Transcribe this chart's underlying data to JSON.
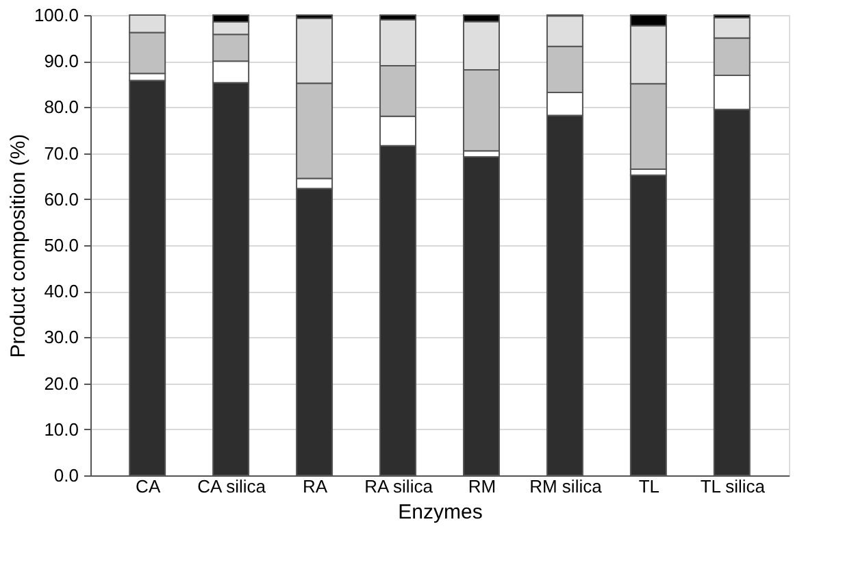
{
  "chart_data": {
    "type": "bar",
    "stacked": true,
    "xlabel": "Enzymes",
    "ylabel": "Product composition (%)",
    "categories": [
      "CA",
      "CA silica",
      "RA",
      "RA silica",
      "RM",
      "RM silica",
      "TL",
      "TL silica"
    ],
    "series": [
      {
        "color": "#2e2e2e",
        "values": [
          85.8,
          85.3,
          62.3,
          71.6,
          69.2,
          78.2,
          65.2,
          79.5
        ]
      },
      {
        "color": "#ffffff",
        "values": [
          1.5,
          4.7,
          2.2,
          6.4,
          1.3,
          5.0,
          1.3,
          7.4
        ]
      },
      {
        "color": "#c0c0c0",
        "values": [
          8.9,
          5.8,
          20.7,
          11.0,
          17.6,
          10.0,
          18.6,
          8.1
        ]
      },
      {
        "color": "#dedede",
        "values": [
          3.8,
          2.7,
          14.1,
          10.0,
          10.5,
          6.6,
          12.6,
          4.4
        ]
      },
      {
        "color": "#000000",
        "values": [
          0,
          1.5,
          0.7,
          1.0,
          1.4,
          0.2,
          2.3,
          0.6
        ]
      }
    ],
    "ylim": [
      0,
      100
    ],
    "yticks": [
      {
        "value": 0,
        "label": "0.0"
      },
      {
        "value": 10,
        "label": "10.0"
      },
      {
        "value": 20,
        "label": "20.0"
      },
      {
        "value": 30,
        "label": "30.0"
      },
      {
        "value": 40,
        "label": "40.0"
      },
      {
        "value": 50,
        "label": "50.0"
      },
      {
        "value": 60,
        "label": "60.0"
      },
      {
        "value": 70,
        "label": "70.0"
      },
      {
        "value": 80,
        "label": "80.0"
      },
      {
        "value": 90,
        "label": "90.0"
      },
      {
        "value": 100,
        "label": "100.0"
      }
    ],
    "grid": "y",
    "legend": false
  }
}
